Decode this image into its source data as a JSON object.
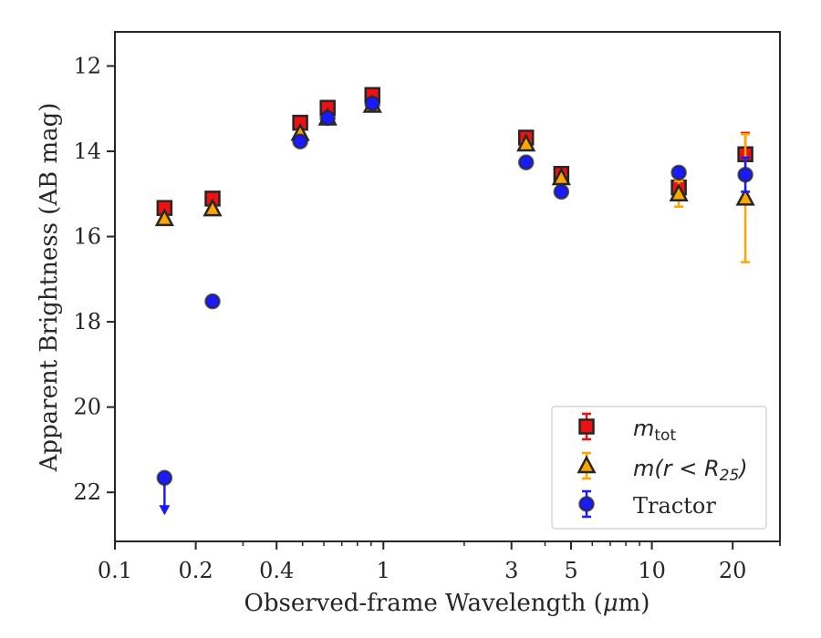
{
  "chart_data": {
    "type": "scatter",
    "xlabel": "Observed-frame Wavelength (μm)",
    "xlabel_prefix": "Observed-frame Wavelength (",
    "xlabel_mu": "μ",
    "xlabel_suffix": "m)",
    "ylabel": "Apparent Brightness (AB mag)",
    "x_scale": "log",
    "y_inverted": true,
    "xlim": [
      0.1,
      30
    ],
    "ylim": [
      23.15,
      11.2
    ],
    "x_ticks": [
      0.1,
      0.2,
      0.4,
      1,
      3,
      5,
      10,
      20
    ],
    "x_tick_labels": [
      "0.1",
      "0.2",
      "0.4",
      "1",
      "3",
      "5",
      "10",
      "20"
    ],
    "y_ticks": [
      12,
      14,
      16,
      18,
      20,
      22
    ],
    "y_tick_labels": [
      "12",
      "14",
      "16",
      "18",
      "20",
      "22"
    ],
    "grid": false,
    "legend_position": "lower-right",
    "colors": {
      "mtot": "#ee1111",
      "mr25": "#ffa500",
      "tractor": "#1a1aff",
      "edge": "#262626"
    },
    "series": [
      {
        "name": "m_tot",
        "marker": "square",
        "x": [
          0.153,
          0.231,
          0.49,
          0.62,
          0.91,
          3.4,
          4.6,
          12.6,
          22.3
        ],
        "y": [
          15.33,
          15.11,
          13.33,
          12.98,
          12.68,
          13.68,
          14.53,
          14.85,
          14.07
        ],
        "yerr": [
          0.05,
          0.05,
          0.05,
          0.05,
          0.05,
          0.05,
          0.05,
          0.1,
          0.5
        ]
      },
      {
        "name": "m(r < R_25)",
        "marker": "triangle",
        "x": [
          0.153,
          0.231,
          0.49,
          0.62,
          0.91,
          3.4,
          4.6,
          12.6,
          22.3
        ],
        "y": [
          15.58,
          15.35,
          13.58,
          13.22,
          12.92,
          13.83,
          14.62,
          15.0,
          15.1
        ],
        "yerr": [
          0.05,
          0.05,
          0.05,
          0.05,
          0.05,
          0.05,
          0.05,
          0.3,
          1.5
        ]
      },
      {
        "name": "Tractor",
        "marker": "circle",
        "x": [
          0.153,
          0.231,
          0.49,
          0.62,
          0.91,
          3.4,
          4.6,
          12.6,
          22.3
        ],
        "y": [
          21.66,
          17.52,
          13.77,
          13.22,
          12.88,
          14.26,
          14.95,
          14.5,
          14.55
        ],
        "yerr": [
          0.05,
          0.05,
          0.05,
          0.05,
          0.05,
          0.05,
          0.05,
          0.05,
          0.4
        ],
        "upper_limit": [
          true,
          false,
          false,
          false,
          false,
          false,
          false,
          false,
          false
        ]
      }
    ],
    "legend": [
      {
        "main": "m",
        "sub": "tot"
      },
      {
        "main": "m(r < R",
        "sub": "25",
        "end": ")"
      },
      {
        "text": "Tractor"
      }
    ]
  }
}
